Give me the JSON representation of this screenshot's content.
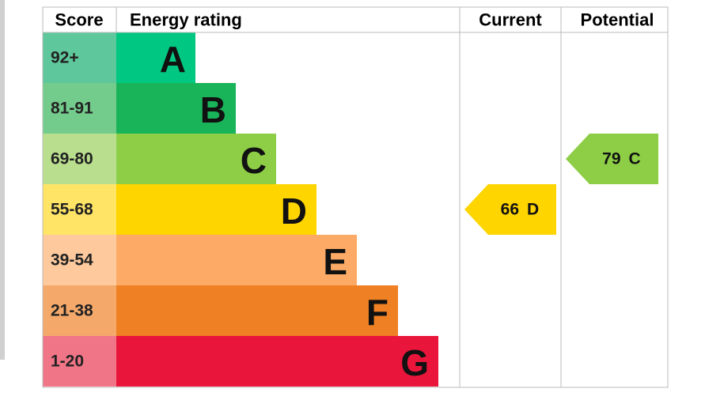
{
  "headers": {
    "score": "Score",
    "rating": "Energy rating",
    "current": "Current",
    "potential": "Potential"
  },
  "bands": [
    {
      "score": "92+",
      "letter": "A",
      "color": "#00c781",
      "score_color": "#5fc79c"
    },
    {
      "score": "81-91",
      "letter": "B",
      "color": "#19b459",
      "score_color": "#74cc8c"
    },
    {
      "score": "69-80",
      "letter": "C",
      "color": "#8dce46",
      "score_color": "#b9df8e"
    },
    {
      "score": "55-68",
      "letter": "D",
      "color": "#ffd500",
      "score_color": "#ffe466"
    },
    {
      "score": "39-54",
      "letter": "E",
      "color": "#fcaa65",
      "score_color": "#fdc99d"
    },
    {
      "score": "21-38",
      "letter": "F",
      "color": "#ef8023",
      "score_color": "#f4a96b"
    },
    {
      "score": "1-20",
      "letter": "G",
      "color": "#e9153b",
      "score_color": "#f07587"
    }
  ],
  "current": {
    "value": 66,
    "letter": "D"
  },
  "potential": {
    "value": 79,
    "letter": "C"
  }
}
